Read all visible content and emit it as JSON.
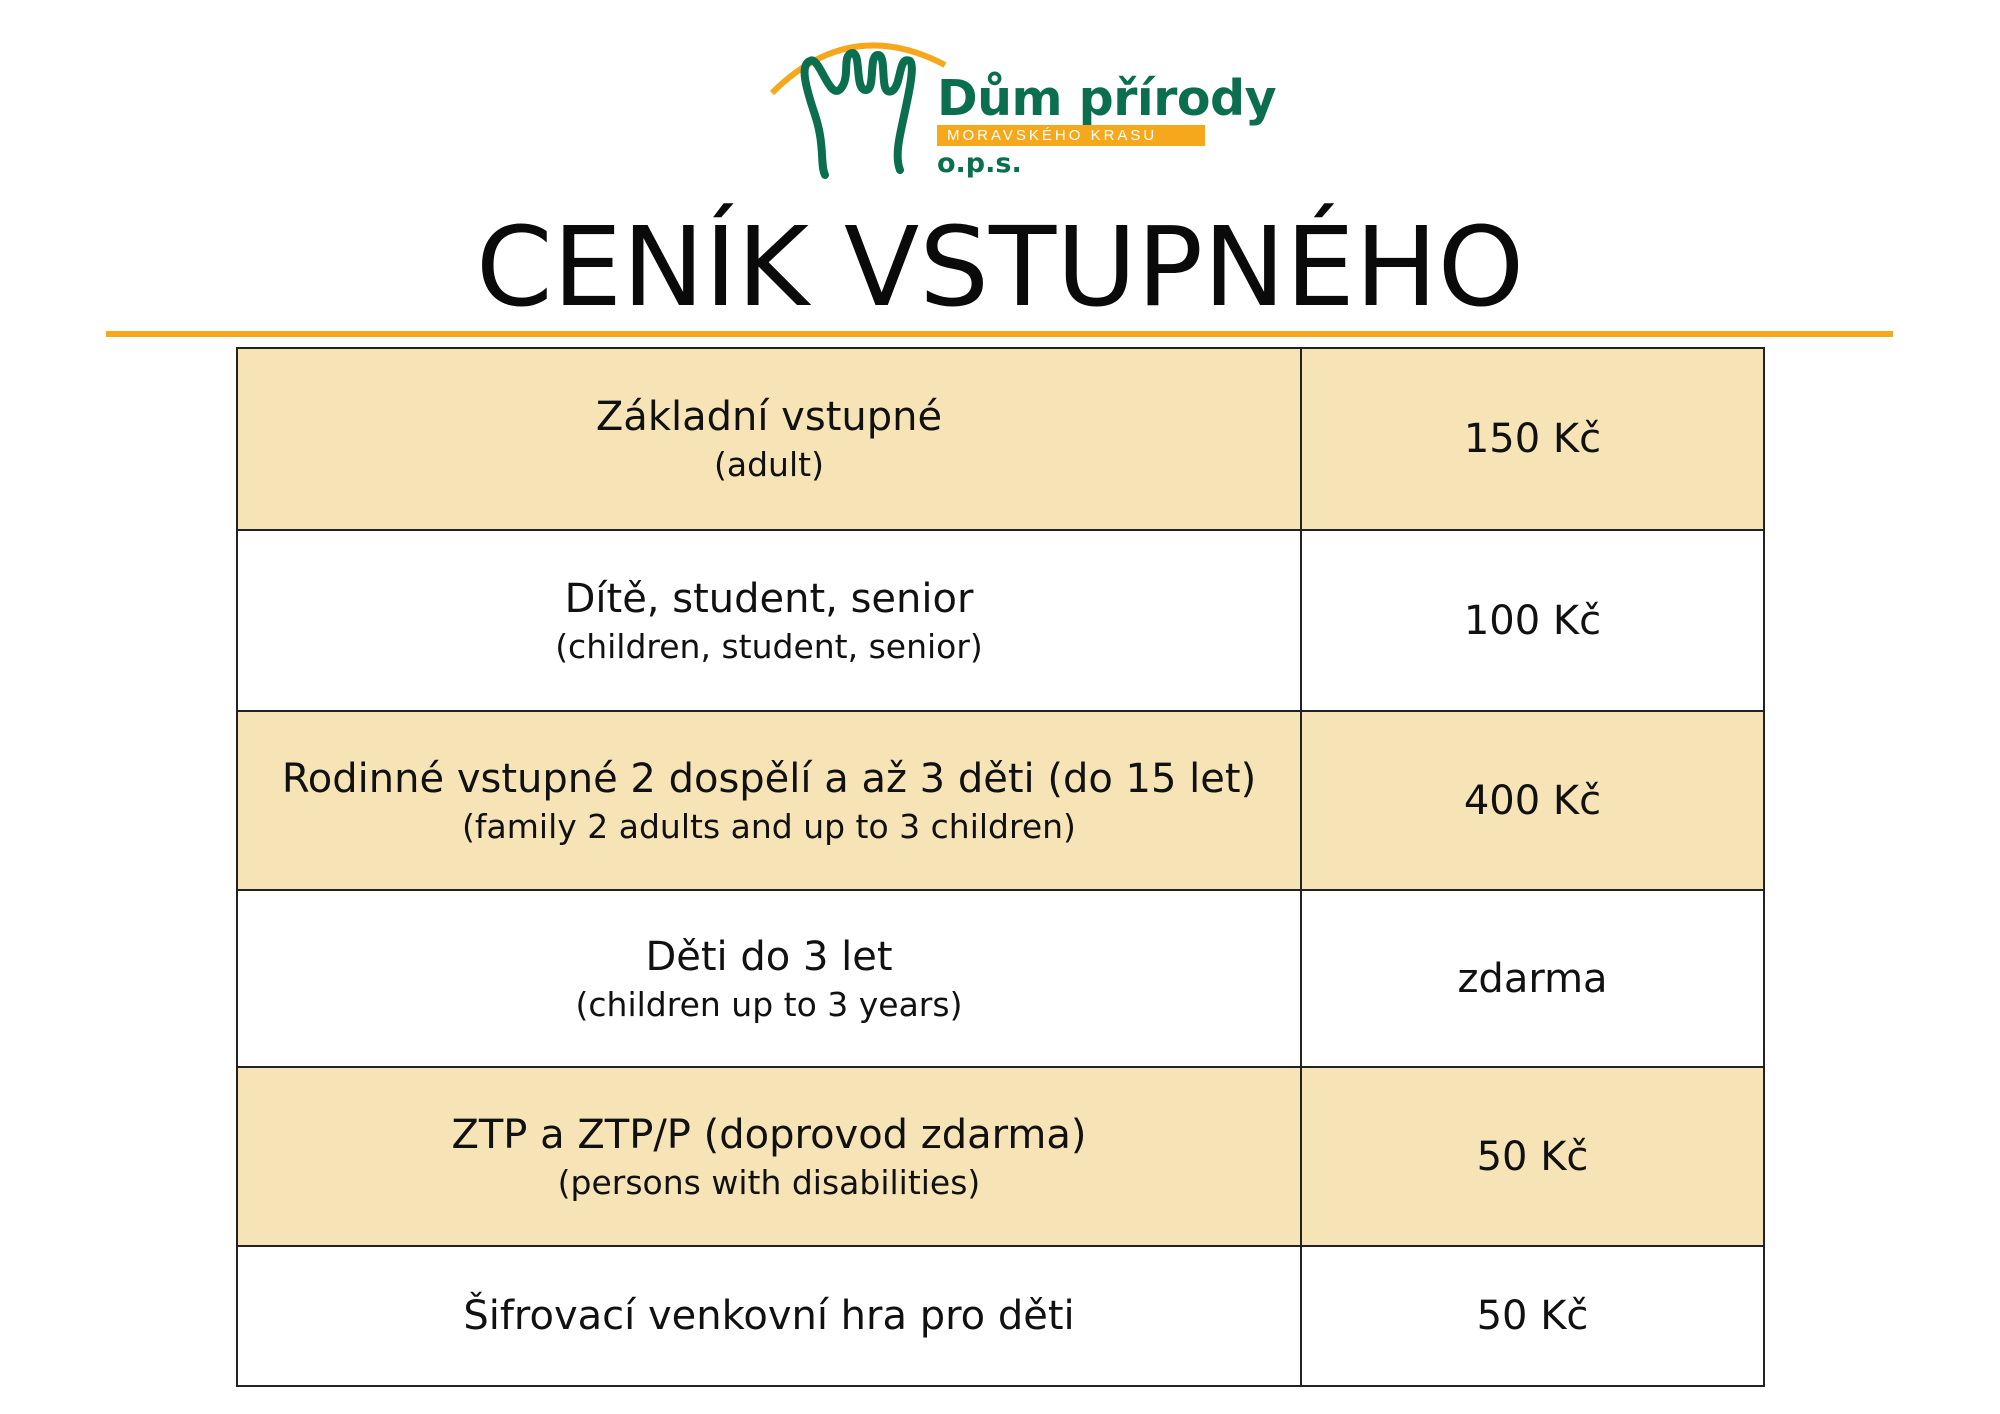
{
  "logo": {
    "name": "Dům přírody",
    "subtitle": "MORAVSKÉHO KRASU",
    "suffix": "o.p.s.",
    "colors": {
      "green": "#0b6e4f",
      "orange": "#f5a81c"
    }
  },
  "title": "CENÍK VSTUPNÉHO",
  "colors": {
    "accent": "#f5a81c",
    "row_highlight": "#f7e4b6"
  },
  "rows": [
    {
      "label": "Základní vstupné",
      "sublabel": "(adult)",
      "price": "150 Kč"
    },
    {
      "label": "Dítě, student, senior",
      "sublabel": "(children, student, senior)",
      "price": "100 Kč"
    },
    {
      "label": "Rodinné vstupné 2 dospělí a až 3 děti (do 15 let)",
      "sublabel": "(family 2 adults and up to 3 children)",
      "price": "400 Kč"
    },
    {
      "label": "Děti do 3 let",
      "sublabel": "(children up to 3 years)",
      "price": "zdarma"
    },
    {
      "label": "ZTP a ZTP/P (doprovod zdarma)",
      "sublabel": "(persons with disabilities)",
      "price": "50 Kč"
    },
    {
      "label": "Šifrovací venkovní hra pro děti",
      "price": "50 Kč"
    }
  ]
}
